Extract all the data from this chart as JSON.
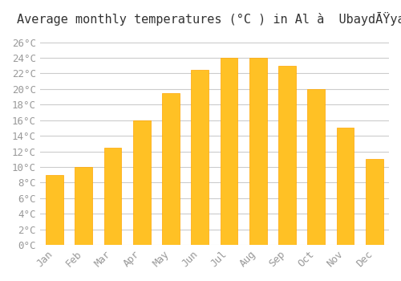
{
  "title": "Average monthly temperatures (°C ) in Al à  UbaydĀŸyah",
  "months": [
    "Jan",
    "Feb",
    "Mar",
    "Apr",
    "May",
    "Jun",
    "Jul",
    "Aug",
    "Sep",
    "Oct",
    "Nov",
    "Dec"
  ],
  "temperatures": [
    9,
    10,
    12.5,
    16,
    19.5,
    22.5,
    24,
    24,
    23,
    20,
    15,
    11
  ],
  "bar_color": "#FFC125",
  "bar_edge_color": "#FFA500",
  "background_color": "#ffffff",
  "grid_color": "#cccccc",
  "text_color": "#999999",
  "ylim": [
    0,
    27
  ],
  "yticks": [
    0,
    2,
    4,
    6,
    8,
    10,
    12,
    14,
    16,
    18,
    20,
    22,
    24,
    26
  ],
  "title_fontsize": 11,
  "tick_fontsize": 9
}
